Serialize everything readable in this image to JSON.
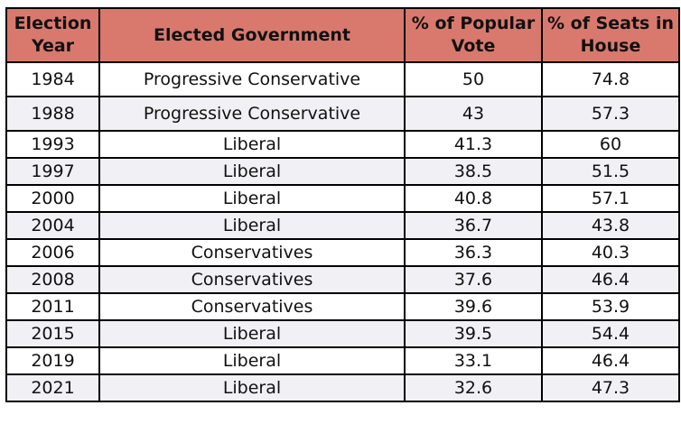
{
  "table": {
    "headers": {
      "year": "Election Year",
      "government": "Elected Government",
      "popular_vote": "% of Popular Vote",
      "seats": "% of Seats in House"
    },
    "rows": [
      {
        "year": "1984",
        "government": "Progressive Conservative",
        "popular_vote": "50",
        "seats": "74.8"
      },
      {
        "year": "1988",
        "government": "Progressive Conservative",
        "popular_vote": "43",
        "seats": "57.3"
      },
      {
        "year": "1993",
        "government": "Liberal",
        "popular_vote": "41.3",
        "seats": "60"
      },
      {
        "year": "1997",
        "government": "Liberal",
        "popular_vote": "38.5",
        "seats": "51.5"
      },
      {
        "year": "2000",
        "government": "Liberal",
        "popular_vote": "40.8",
        "seats": "57.1"
      },
      {
        "year": "2004",
        "government": "Liberal",
        "popular_vote": "36.7",
        "seats": "43.8"
      },
      {
        "year": "2006",
        "government": "Conservatives",
        "popular_vote": "36.3",
        "seats": "40.3"
      },
      {
        "year": "2008",
        "government": "Conservatives",
        "popular_vote": "37.6",
        "seats": "46.4"
      },
      {
        "year": "2011",
        "government": "Conservatives",
        "popular_vote": "39.6",
        "seats": "53.9"
      },
      {
        "year": "2015",
        "government": "Liberal",
        "popular_vote": "39.5",
        "seats": "54.4"
      },
      {
        "year": "2019",
        "government": "Liberal",
        "popular_vote": "33.1",
        "seats": "46.4"
      },
      {
        "year": "2021",
        "government": "Liberal",
        "popular_vote": "32.6",
        "seats": "47.3"
      }
    ]
  },
  "colors": {
    "header_bg": "#d9796e",
    "stripe_bg": "#f0f0f5",
    "border": "#000000"
  }
}
